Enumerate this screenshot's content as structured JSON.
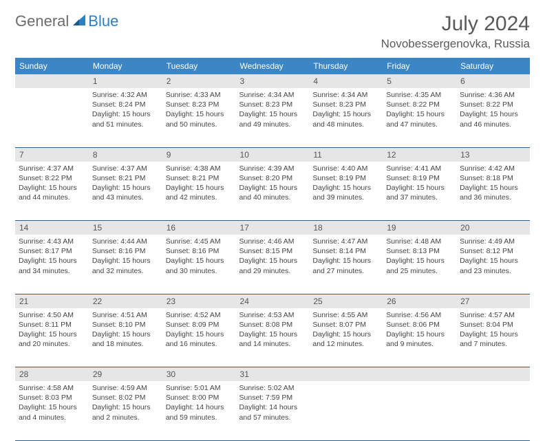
{
  "brand": {
    "part1": "General",
    "part2": "Blue"
  },
  "title": "July 2024",
  "location": "Novobessergenovka, Russia",
  "colors": {
    "header_bg": "#3d86c6",
    "daynum_bg": "#e6e6e6",
    "rule": "#2b5f8a",
    "logo_blue": "#2d7fc1",
    "logo_gray": "#6b6b6b"
  },
  "day_headers": [
    "Sunday",
    "Monday",
    "Tuesday",
    "Wednesday",
    "Thursday",
    "Friday",
    "Saturday"
  ],
  "weeks": [
    {
      "nums": [
        "",
        "1",
        "2",
        "3",
        "4",
        "5",
        "6"
      ],
      "cells": [
        null,
        {
          "sunrise": "4:32 AM",
          "sunset": "8:24 PM",
          "dl": "15 hours and 51 minutes."
        },
        {
          "sunrise": "4:33 AM",
          "sunset": "8:23 PM",
          "dl": "15 hours and 50 minutes."
        },
        {
          "sunrise": "4:34 AM",
          "sunset": "8:23 PM",
          "dl": "15 hours and 49 minutes."
        },
        {
          "sunrise": "4:34 AM",
          "sunset": "8:23 PM",
          "dl": "15 hours and 48 minutes."
        },
        {
          "sunrise": "4:35 AM",
          "sunset": "8:22 PM",
          "dl": "15 hours and 47 minutes."
        },
        {
          "sunrise": "4:36 AM",
          "sunset": "8:22 PM",
          "dl": "15 hours and 46 minutes."
        }
      ]
    },
    {
      "nums": [
        "7",
        "8",
        "9",
        "10",
        "11",
        "12",
        "13"
      ],
      "cells": [
        {
          "sunrise": "4:37 AM",
          "sunset": "8:22 PM",
          "dl": "15 hours and 44 minutes."
        },
        {
          "sunrise": "4:37 AM",
          "sunset": "8:21 PM",
          "dl": "15 hours and 43 minutes."
        },
        {
          "sunrise": "4:38 AM",
          "sunset": "8:21 PM",
          "dl": "15 hours and 42 minutes."
        },
        {
          "sunrise": "4:39 AM",
          "sunset": "8:20 PM",
          "dl": "15 hours and 40 minutes."
        },
        {
          "sunrise": "4:40 AM",
          "sunset": "8:19 PM",
          "dl": "15 hours and 39 minutes."
        },
        {
          "sunrise": "4:41 AM",
          "sunset": "8:19 PM",
          "dl": "15 hours and 37 minutes."
        },
        {
          "sunrise": "4:42 AM",
          "sunset": "8:18 PM",
          "dl": "15 hours and 36 minutes."
        }
      ]
    },
    {
      "nums": [
        "14",
        "15",
        "16",
        "17",
        "18",
        "19",
        "20"
      ],
      "cells": [
        {
          "sunrise": "4:43 AM",
          "sunset": "8:17 PM",
          "dl": "15 hours and 34 minutes."
        },
        {
          "sunrise": "4:44 AM",
          "sunset": "8:16 PM",
          "dl": "15 hours and 32 minutes."
        },
        {
          "sunrise": "4:45 AM",
          "sunset": "8:16 PM",
          "dl": "15 hours and 30 minutes."
        },
        {
          "sunrise": "4:46 AM",
          "sunset": "8:15 PM",
          "dl": "15 hours and 29 minutes."
        },
        {
          "sunrise": "4:47 AM",
          "sunset": "8:14 PM",
          "dl": "15 hours and 27 minutes."
        },
        {
          "sunrise": "4:48 AM",
          "sunset": "8:13 PM",
          "dl": "15 hours and 25 minutes."
        },
        {
          "sunrise": "4:49 AM",
          "sunset": "8:12 PM",
          "dl": "15 hours and 23 minutes."
        }
      ]
    },
    {
      "nums": [
        "21",
        "22",
        "23",
        "24",
        "25",
        "26",
        "27"
      ],
      "cells": [
        {
          "sunrise": "4:50 AM",
          "sunset": "8:11 PM",
          "dl": "15 hours and 20 minutes."
        },
        {
          "sunrise": "4:51 AM",
          "sunset": "8:10 PM",
          "dl": "15 hours and 18 minutes."
        },
        {
          "sunrise": "4:52 AM",
          "sunset": "8:09 PM",
          "dl": "15 hours and 16 minutes."
        },
        {
          "sunrise": "4:53 AM",
          "sunset": "8:08 PM",
          "dl": "15 hours and 14 minutes."
        },
        {
          "sunrise": "4:55 AM",
          "sunset": "8:07 PM",
          "dl": "15 hours and 12 minutes."
        },
        {
          "sunrise": "4:56 AM",
          "sunset": "8:06 PM",
          "dl": "15 hours and 9 minutes."
        },
        {
          "sunrise": "4:57 AM",
          "sunset": "8:04 PM",
          "dl": "15 hours and 7 minutes."
        }
      ]
    },
    {
      "nums": [
        "28",
        "29",
        "30",
        "31",
        "",
        "",
        ""
      ],
      "cells": [
        {
          "sunrise": "4:58 AM",
          "sunset": "8:03 PM",
          "dl": "15 hours and 4 minutes."
        },
        {
          "sunrise": "4:59 AM",
          "sunset": "8:02 PM",
          "dl": "15 hours and 2 minutes."
        },
        {
          "sunrise": "5:01 AM",
          "sunset": "8:00 PM",
          "dl": "14 hours and 59 minutes."
        },
        {
          "sunrise": "5:02 AM",
          "sunset": "7:59 PM",
          "dl": "14 hours and 57 minutes."
        },
        null,
        null,
        null
      ]
    }
  ],
  "labels": {
    "sunrise": "Sunrise:",
    "sunset": "Sunset:",
    "daylight": "Daylight:"
  }
}
